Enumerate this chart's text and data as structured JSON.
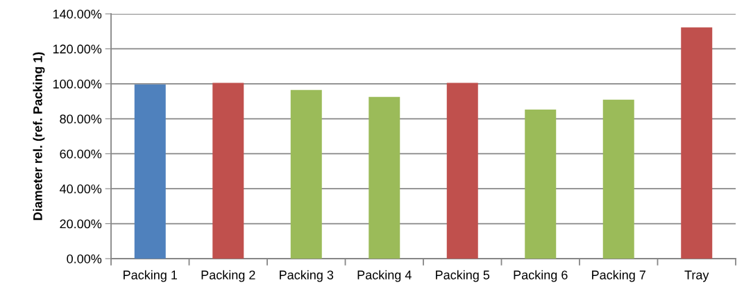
{
  "chart_data": {
    "type": "bar",
    "ylabel": "Diameter rel. (ref. Packing 1)",
    "categories": [
      "Packing 1",
      "Packing 2",
      "Packing 3",
      "Packing 4",
      "Packing 5",
      "Packing 6",
      "Packing 7",
      "Tray"
    ],
    "values": [
      99.6,
      100.5,
      96.5,
      92.5,
      100.5,
      85.3,
      90.9,
      132.3
    ],
    "colors": [
      "#4f81bd",
      "#c0504d",
      "#9bbb59",
      "#9bbb59",
      "#c0504d",
      "#9bbb59",
      "#9bbb59",
      "#c0504d"
    ],
    "ylim": [
      0,
      140
    ],
    "yticks": [
      {
        "value": 0,
        "label": "0.00%"
      },
      {
        "value": 20,
        "label": "20.00%"
      },
      {
        "value": 40,
        "label": "40.00%"
      },
      {
        "value": 60,
        "label": "60.00%"
      },
      {
        "value": 80,
        "label": "80.00%"
      },
      {
        "value": 100,
        "label": "100.00%"
      },
      {
        "value": 120,
        "label": "120.00%"
      },
      {
        "value": 140,
        "label": "140.00%"
      }
    ],
    "grid": "y"
  }
}
